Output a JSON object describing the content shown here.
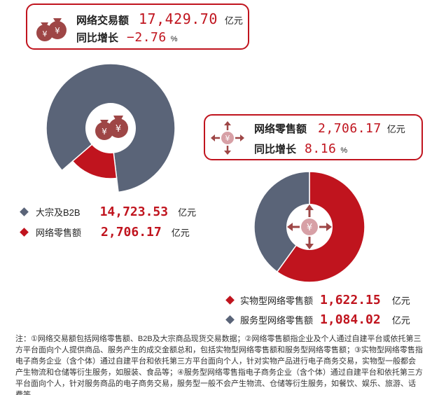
{
  "top_box": {
    "label1": "网络交易额",
    "value1": "17,429.70",
    "unit1": "亿元",
    "label2": "同比增长",
    "value2": "−2.76",
    "unit2": "%"
  },
  "right_box": {
    "label1": "网络零售额",
    "value1": "2,706.17",
    "unit1": "亿元",
    "label2": "同比增长",
    "value2": "8.16",
    "unit2": "%"
  },
  "left_legend": [
    {
      "label": "大宗及B2B",
      "value": "14,723.53",
      "unit": "亿元",
      "color": "#5a6478"
    },
    {
      "label": "网络零售额",
      "value": "2,706.17",
      "unit": "亿元",
      "color": "#c0141e"
    }
  ],
  "right_legend": [
    {
      "label": "实物型网络零售额",
      "value": "1,622.15",
      "unit": "亿元",
      "color": "#c0141e"
    },
    {
      "label": "服务型网络零售额",
      "value": "1,084.02",
      "unit": "亿元",
      "color": "#5a6478"
    }
  ],
  "note": "注：①网络交易额包括网络零售额、B2B及大宗商品现货交易数据；②网络零售额指企业及个人通过自建平台或依托第三方平台面向个人提供商品、服务产生的成交金额总和，包括实物型网络零售额和服务型网络零售额；③实物型网络零售指电子商务企业（含个体）通过自建平台和依托第三方平台面向个人，针对实物产品进行电子商务交易，实物型一般都会产生物流和仓储等衍生服务，如服装、食品等；④服务型网络零售指电子商务企业（含个体）通过自建平台和依托第三方平台面向个人，针对服务商品的电子商务交易，服务型一般不会产生物流、仓储等衍生服务，如餐饮、娱乐、旅游、话费等。",
  "chart_data": [
    {
      "type": "pie",
      "categories": [
        "大宗及B2B",
        "网络零售额"
      ],
      "values": [
        14723.53,
        2706.17
      ],
      "colors": [
        "#5a6478",
        "#c0141e"
      ]
    },
    {
      "type": "pie",
      "categories": [
        "实物型网络零售额",
        "服务型网络零售额"
      ],
      "values": [
        1622.15,
        1084.02
      ],
      "colors": [
        "#c0141e",
        "#5a6478"
      ]
    }
  ],
  "icons": {
    "top_box": "money-bags-icon",
    "right_box": "move-arrows-icon",
    "left_center": "money-bags-icon",
    "right_center": "move-arrows-icon"
  }
}
